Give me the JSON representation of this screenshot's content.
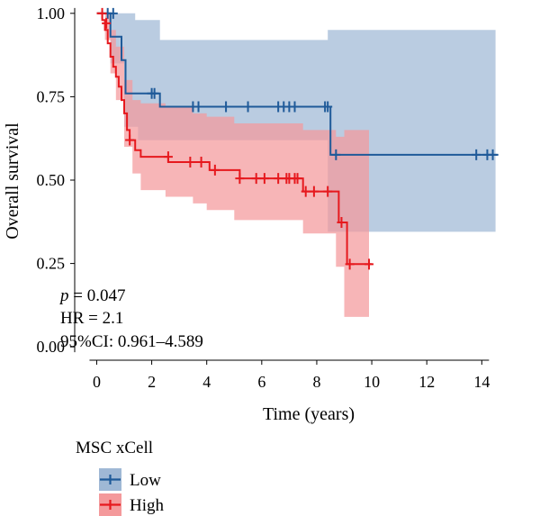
{
  "chart_data": {
    "type": "line",
    "subtype": "kaplan-meier",
    "xlabel": "Time (years)",
    "ylabel": "Overall survival",
    "xlim": [
      -0.8,
      15.2
    ],
    "ylim": [
      -0.04,
      1.04
    ],
    "xticks": [
      0,
      2,
      4,
      6,
      8,
      10,
      12,
      14
    ],
    "yticks": [
      0.0,
      0.25,
      0.5,
      0.75,
      1.0
    ],
    "ytick_labels": [
      "0.00",
      "0.25",
      "0.50",
      "0.75",
      "1.00"
    ],
    "grid": false,
    "annotations": {
      "p_label": "p",
      "p_value": " = 0.047",
      "hr": "HR = 2.1",
      "ci": "95%CI: 0.961–4.589"
    },
    "legend": {
      "title": "MSC xCell",
      "position": "bottom-left"
    },
    "series": [
      {
        "name": "Low",
        "color": "#1f5a99",
        "ci_color": "#9fb8d5",
        "steps": [
          [
            0,
            1.0
          ],
          [
            0.5,
            0.93
          ],
          [
            0.9,
            0.86
          ],
          [
            1.05,
            0.76
          ],
          [
            1.5,
            0.76
          ],
          [
            2.3,
            0.72
          ],
          [
            8.4,
            0.72
          ],
          [
            8.5,
            0.576
          ],
          [
            14.6,
            0.576
          ]
        ],
        "upper": [
          [
            0,
            1.0
          ],
          [
            0.35,
            1.0
          ],
          [
            1.4,
            0.98
          ],
          [
            2.3,
            0.92
          ],
          [
            8.4,
            0.92
          ],
          [
            8.4,
            0.95
          ],
          [
            14.5,
            0.95
          ]
        ],
        "lower": [
          [
            0,
            1.0
          ],
          [
            0.5,
            0.85
          ],
          [
            1.0,
            0.66
          ],
          [
            1.5,
            0.62
          ],
          [
            8.4,
            0.55
          ],
          [
            8.4,
            0.345
          ],
          [
            14.5,
            0.345
          ]
        ],
        "censors": [
          [
            0.4,
            1.0
          ],
          [
            0.6,
            1.0
          ],
          [
            2.0,
            0.76
          ],
          [
            2.1,
            0.76
          ],
          [
            3.5,
            0.72
          ],
          [
            3.7,
            0.72
          ],
          [
            4.7,
            0.72
          ],
          [
            5.5,
            0.72
          ],
          [
            6.6,
            0.72
          ],
          [
            6.8,
            0.72
          ],
          [
            7.0,
            0.72
          ],
          [
            7.2,
            0.72
          ],
          [
            8.3,
            0.72
          ],
          [
            8.4,
            0.72
          ],
          [
            8.7,
            0.576
          ],
          [
            13.8,
            0.576
          ],
          [
            14.2,
            0.576
          ],
          [
            14.4,
            0.576
          ]
        ]
      },
      {
        "name": "High",
        "color": "#e6191e",
        "ci_color": "#f4999b",
        "steps": [
          [
            0,
            1.0
          ],
          [
            0.2,
            0.98
          ],
          [
            0.3,
            0.95
          ],
          [
            0.4,
            0.91
          ],
          [
            0.5,
            0.87
          ],
          [
            0.6,
            0.84
          ],
          [
            0.7,
            0.81
          ],
          [
            0.8,
            0.78
          ],
          [
            0.9,
            0.74
          ],
          [
            1.0,
            0.7
          ],
          [
            1.1,
            0.65
          ],
          [
            1.2,
            0.62
          ],
          [
            1.4,
            0.59
          ],
          [
            1.6,
            0.57
          ],
          [
            2.5,
            0.57
          ],
          [
            2.6,
            0.554
          ],
          [
            4.0,
            0.554
          ],
          [
            4.1,
            0.53
          ],
          [
            5.0,
            0.53
          ],
          [
            5.2,
            0.505
          ],
          [
            7.4,
            0.505
          ],
          [
            7.5,
            0.466
          ],
          [
            8.7,
            0.466
          ],
          [
            8.8,
            0.373
          ],
          [
            9.0,
            0.373
          ],
          [
            9.1,
            0.248
          ],
          [
            10.0,
            0.248
          ]
        ],
        "upper": [
          [
            0,
            1.0
          ],
          [
            0.3,
            1.0
          ],
          [
            0.5,
            0.95
          ],
          [
            0.7,
            0.9
          ],
          [
            1.0,
            0.8
          ],
          [
            1.3,
            0.74
          ],
          [
            1.6,
            0.73
          ],
          [
            2.5,
            0.72
          ],
          [
            3.5,
            0.7
          ],
          [
            4.0,
            0.69
          ],
          [
            5.0,
            0.67
          ],
          [
            7.5,
            0.65
          ],
          [
            8.7,
            0.63
          ],
          [
            9.0,
            0.65
          ],
          [
            9.9,
            0.65
          ]
        ],
        "lower": [
          [
            0,
            1.0
          ],
          [
            0.3,
            0.92
          ],
          [
            0.5,
            0.82
          ],
          [
            0.7,
            0.74
          ],
          [
            1.0,
            0.6
          ],
          [
            1.3,
            0.52
          ],
          [
            1.6,
            0.47
          ],
          [
            2.5,
            0.45
          ],
          [
            3.5,
            0.43
          ],
          [
            4.0,
            0.41
          ],
          [
            5.0,
            0.38
          ],
          [
            7.5,
            0.34
          ],
          [
            8.7,
            0.24
          ],
          [
            9.0,
            0.09
          ],
          [
            9.9,
            0.09
          ]
        ],
        "censors": [
          [
            0.2,
            1.0
          ],
          [
            0.35,
            0.97
          ],
          [
            1.2,
            0.62
          ],
          [
            2.6,
            0.57
          ],
          [
            3.4,
            0.554
          ],
          [
            3.8,
            0.554
          ],
          [
            4.3,
            0.53
          ],
          [
            5.2,
            0.505
          ],
          [
            5.8,
            0.505
          ],
          [
            6.1,
            0.505
          ],
          [
            6.6,
            0.505
          ],
          [
            6.9,
            0.505
          ],
          [
            7.0,
            0.505
          ],
          [
            7.2,
            0.505
          ],
          [
            7.3,
            0.505
          ],
          [
            7.6,
            0.466
          ],
          [
            7.9,
            0.466
          ],
          [
            8.4,
            0.466
          ],
          [
            8.9,
            0.373
          ],
          [
            9.2,
            0.248
          ],
          [
            9.9,
            0.248
          ]
        ]
      }
    ]
  }
}
